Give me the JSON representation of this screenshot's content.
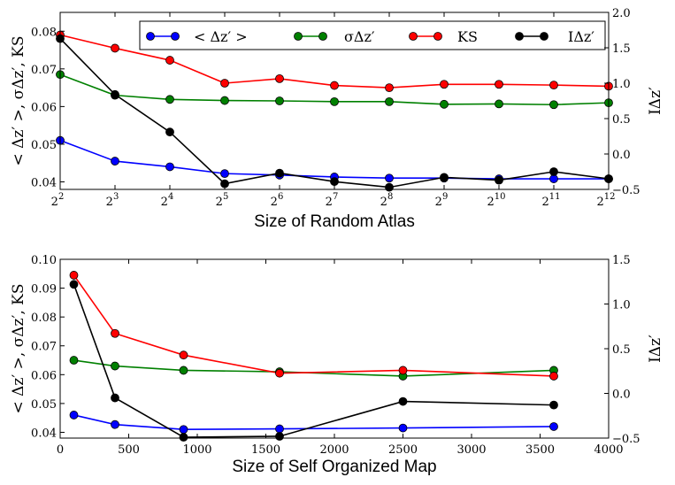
{
  "chart_data": [
    {
      "type": "line",
      "title": "",
      "xlabel": "Size of Random Atlas",
      "ylabel": "< Δz′ >,  σΔz′,  KS",
      "ylabel_right": "IΔz′",
      "x": [
        2,
        3,
        4,
        5,
        6,
        7,
        8,
        9,
        10,
        11,
        12
      ],
      "x_tick_base": "2",
      "x_tick_exps": [
        "2",
        "3",
        "4",
        "5",
        "6",
        "7",
        "8",
        "9",
        "10",
        "11",
        "12"
      ],
      "xlim": [
        2,
        12
      ],
      "ylim": [
        0.038,
        0.085
      ],
      "y_ticks": [
        0.04,
        0.05,
        0.06,
        0.07,
        0.08
      ],
      "y_tick_labels": [
        "0.04",
        "0.05",
        "0.06",
        "0.07",
        "0.08"
      ],
      "ylim_right": [
        -0.5,
        2.0
      ],
      "y_ticks_right": [
        -0.5,
        0.0,
        0.5,
        1.0,
        1.5,
        2.0
      ],
      "y_tick_labels_right": [
        "−0.5",
        "0.0",
        "0.5",
        "1.0",
        "1.5",
        "2.0"
      ],
      "series": [
        {
          "name": "< Δz′ >",
          "color": "#0000ff",
          "axis": "left",
          "values": [
            0.051,
            0.0455,
            0.044,
            0.0422,
            0.0418,
            0.0413,
            0.041,
            0.041,
            0.0408,
            0.0408,
            0.0408
          ]
        },
        {
          "name": "σΔz′",
          "color": "#008000",
          "axis": "left",
          "values": [
            0.0685,
            0.063,
            0.0619,
            0.0616,
            0.0615,
            0.0613,
            0.0613,
            0.0606,
            0.0607,
            0.0605,
            0.061
          ]
        },
        {
          "name": "KS",
          "color": "#ff0000",
          "axis": "left",
          "values": [
            0.079,
            0.0755,
            0.0723,
            0.0662,
            0.0674,
            0.0656,
            0.065,
            0.0659,
            0.0659,
            0.0657,
            0.0654
          ]
        },
        {
          "name": "IΔz′",
          "color": "#000000",
          "axis": "right",
          "values": [
            1.63,
            0.84,
            0.31,
            -0.42,
            -0.27,
            -0.39,
            -0.47,
            -0.33,
            -0.37,
            -0.25,
            -0.35
          ]
        }
      ],
      "legend": {
        "position": "top-right",
        "entries": [
          {
            "label": "< Δz′ >",
            "color": "#0000ff"
          },
          {
            "label": "σΔz′",
            "color": "#008000"
          },
          {
            "label": "KS",
            "color": "#ff0000"
          },
          {
            "label": "IΔz′",
            "color": "#000000"
          }
        ]
      }
    },
    {
      "type": "line",
      "title": "",
      "xlabel": "Size of Self Organized Map",
      "ylabel": "< Δz′ >,  σΔz′,  KS",
      "ylabel_right": "IΔz′",
      "x": [
        100,
        400,
        900,
        1600,
        2500,
        3600
      ],
      "xlim": [
        0,
        4000
      ],
      "x_ticks": [
        0,
        500,
        1000,
        1500,
        2000,
        2500,
        3000,
        3500,
        4000
      ],
      "x_tick_labels": [
        "0",
        "500",
        "1000",
        "1500",
        "2000",
        "2500",
        "3000",
        "3500",
        "4000"
      ],
      "ylim": [
        0.038,
        0.1
      ],
      "y_ticks": [
        0.04,
        0.05,
        0.06,
        0.07,
        0.08,
        0.09,
        0.1
      ],
      "y_tick_labels": [
        "0.04",
        "0.05",
        "0.06",
        "0.07",
        "0.08",
        "0.09",
        "0.10"
      ],
      "ylim_right": [
        -0.5,
        1.5
      ],
      "y_ticks_right": [
        -0.5,
        0.0,
        0.5,
        1.0,
        1.5
      ],
      "y_tick_labels_right": [
        "−0.5",
        "0.0",
        "0.5",
        "1.0",
        "1.5"
      ],
      "series": [
        {
          "name": "< Δz′ >",
          "color": "#0000ff",
          "axis": "left",
          "values": [
            0.046,
            0.0427,
            0.041,
            0.0412,
            0.0415,
            0.042
          ]
        },
        {
          "name": "σΔz′",
          "color": "#008000",
          "axis": "left",
          "values": [
            0.065,
            0.063,
            0.0615,
            0.061,
            0.0595,
            0.0615
          ]
        },
        {
          "name": "KS",
          "color": "#ff0000",
          "axis": "left",
          "values": [
            0.0945,
            0.0743,
            0.0668,
            0.0605,
            0.0615,
            0.0595
          ]
        },
        {
          "name": "IΔz′",
          "color": "#000000",
          "axis": "right",
          "values": [
            1.22,
            -0.05,
            -0.49,
            -0.48,
            -0.09,
            -0.13
          ]
        }
      ]
    }
  ]
}
